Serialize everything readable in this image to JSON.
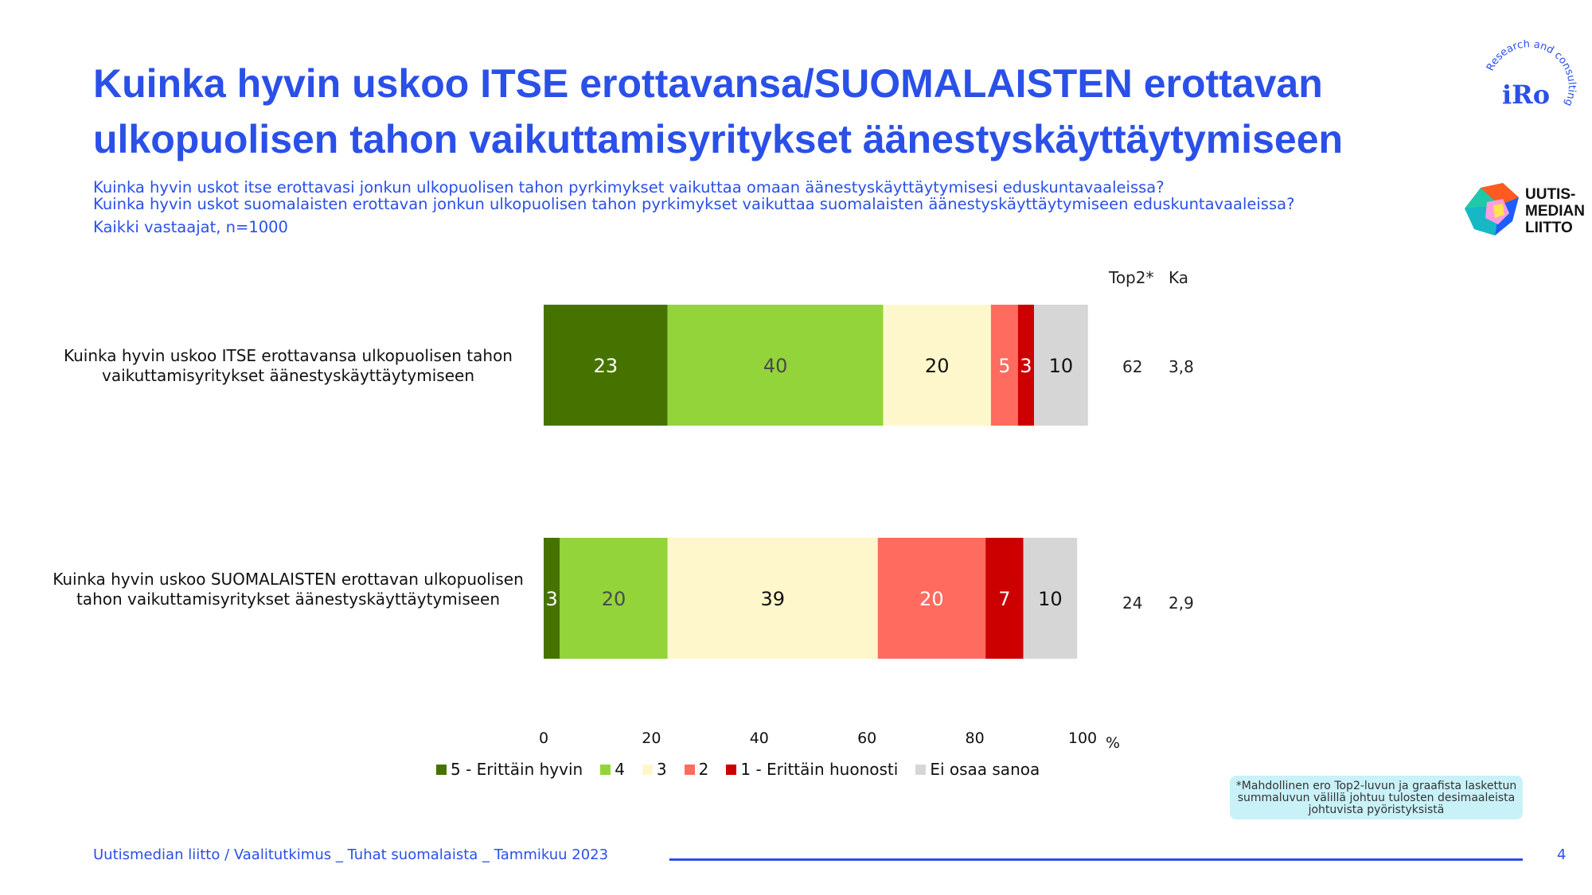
{
  "title": "Kuinka hyvin uskoo ITSE erottavansa/SUOMALAISTEN erottavan ulkopuolisen tahon vaikuttamisyritykset äänestyskäyttäytymiseen",
  "subtitle_lines": [
    "Kuinka hyvin uskot itse erottavasi jonkun ulkopuolisen tahon pyrkimykset vaikuttaa omaan äänestyskäyttäytymisesi eduskuntavaaleissa?",
    "Kuinka hyvin uskot suomalaisten erottavan jonkun ulkopuolisen tahon pyrkimykset vaikuttaa suomalaisten äänestyskäyttäytymiseen eduskuntavaaleissa?"
  ],
  "sample_note": "Kaikki vastaajat, n=1000",
  "logos": {
    "iro_text": "iRo",
    "iro_ring_text": "Research and consulting",
    "uutismedia_lines": [
      "UUTIS-",
      "MEDIAN",
      "LIITTO"
    ]
  },
  "columns": {
    "top2": "Top2*",
    "ka": "Ka"
  },
  "rows": [
    {
      "label": "Kuinka hyvin uskoo ITSE erottavansa ulkopuolisen tahon vaikuttamisyritykset äänestyskäyttäytymiseen",
      "top2": "62",
      "ka": "3,8"
    },
    {
      "label": "Kuinka hyvin uskoo SUOMALAISTEN erottavan ulkopuolisen tahon vaikuttamisyritykset äänestyskäyttäytymiseen",
      "top2": "24",
      "ka": "2,9"
    }
  ],
  "chart_data": {
    "type": "bar",
    "orientation": "horizontal",
    "stacked": true,
    "categories": [
      "Kuinka hyvin uskoo ITSE erottavansa ulkopuolisen tahon vaikuttamisyritykset äänestyskäyttäytymiseen",
      "Kuinka hyvin uskoo SUOMALAISTEN erottavan ulkopuolisen tahon vaikuttamisyritykset äänestyskäyttäytymiseen"
    ],
    "series": [
      {
        "name": "5 - Erittäin hyvin",
        "values": [
          23,
          3
        ],
        "color": "#467300",
        "label_color": "#ffffff"
      },
      {
        "name": "4",
        "values": [
          40,
          20
        ],
        "color": "#93d43a",
        "label_color": "#4a4a4a"
      },
      {
        "name": "3",
        "values": [
          20,
          39
        ],
        "color": "#fff7cc",
        "label_color": "#111111"
      },
      {
        "name": "2",
        "values": [
          5,
          20
        ],
        "color": "#ff6b5f",
        "label_color": "#ffffff"
      },
      {
        "name": "1 - Erittäin huonosti",
        "values": [
          3,
          7
        ],
        "color": "#cc0000",
        "label_color": "#ffffff"
      },
      {
        "name": "Ei osaa sanoa",
        "values": [
          10,
          10
        ],
        "color": "#d6d6d6",
        "label_color": "#111111"
      }
    ],
    "xlim": [
      0,
      100
    ],
    "xticks": [
      0,
      20,
      40,
      60,
      80,
      100
    ],
    "xunit": "%",
    "legend_position": "bottom",
    "grid": false
  },
  "footnote": "*Mahdollinen ero Top2-luvun ja graafista laskettun summaluvun välillä johtuu tulosten desimaaleista johtuvista pyöristyksistä",
  "footer": {
    "source": "Uutismedian liitto / Vaalitutkimus _ Tuhat suomalaista _ Tammikuu 2023",
    "page": "4"
  }
}
